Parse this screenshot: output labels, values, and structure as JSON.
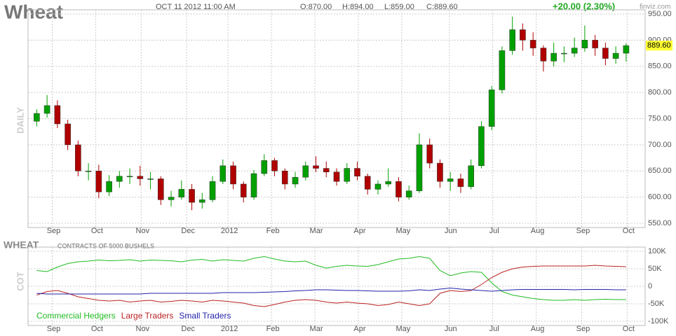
{
  "header": {
    "title": "Wheat",
    "datetime": "OCT 11 2012 11:00 AM",
    "open": "O:870.00",
    "high": "H:894.00",
    "low": "L:859.00",
    "close": "C:889.60",
    "change": "+20.00 (2.30%)",
    "brand": "finviz.com"
  },
  "chart_data": [
    {
      "type": "candlestick",
      "axis_label": "DAILY",
      "last_price": 889.6,
      "last_price_label": "889.60",
      "xlim": [
        0,
        295
      ],
      "xticks": [
        {
          "value": 10,
          "label": "Sep"
        },
        {
          "value": 31,
          "label": "Oct"
        },
        {
          "value": 53,
          "label": "Nov"
        },
        {
          "value": 75,
          "label": "Dec"
        },
        {
          "value": 95,
          "label": "2012"
        },
        {
          "value": 116,
          "label": "Feb"
        },
        {
          "value": 137,
          "label": "Mar"
        },
        {
          "value": 158,
          "label": "Apr"
        },
        {
          "value": 179,
          "label": "May"
        },
        {
          "value": 202,
          "label": "Jun"
        },
        {
          "value": 223,
          "label": "Jul"
        },
        {
          "value": 244,
          "label": "Aug"
        },
        {
          "value": 266,
          "label": "Sep"
        },
        {
          "value": 288,
          "label": "Oct"
        }
      ],
      "ylim": [
        550,
        950
      ],
      "yticks": [
        {
          "value": 550,
          "label": "550.00"
        },
        {
          "value": 600,
          "label": "600.00"
        },
        {
          "value": 650,
          "label": "650.00"
        },
        {
          "value": 700,
          "label": "700.00"
        },
        {
          "value": 750,
          "label": "750.00"
        },
        {
          "value": 800,
          "label": "800.00"
        },
        {
          "value": 850,
          "label": "850.00"
        },
        {
          "value": 900,
          "label": "900.00"
        },
        {
          "value": 950,
          "label": "950.00"
        }
      ],
      "up_color": "#00a000",
      "down_color": "#b00000",
      "grid": true,
      "x": [
        2.5,
        7.5,
        12.5,
        17.5,
        22.5,
        27.5,
        32.5,
        37.5,
        42.5,
        47.5,
        52.5,
        57.5,
        62.5,
        67.5,
        72.5,
        77.5,
        82.5,
        87.5,
        92.5,
        97.5,
        102.5,
        107.5,
        112.5,
        117.5,
        122.5,
        127.5,
        132.5,
        137.5,
        142.5,
        147.5,
        152.5,
        157.5,
        162.5,
        167.5,
        172.5,
        177.5,
        182.5,
        187.5,
        192.5,
        197.5,
        202.5,
        207.5,
        212.5,
        217.5,
        222.5,
        227.5,
        232.5,
        237.5,
        242.5,
        247.5,
        252.5,
        257.5,
        262.5,
        267.5,
        272.5,
        277.5,
        282.5,
        287.5
      ],
      "open": [
        745,
        760,
        775,
        740,
        700,
        650,
        650,
        610,
        630,
        640,
        640,
        635,
        635,
        595,
        600,
        615,
        590,
        595,
        630,
        660,
        625,
        600,
        645,
        670,
        650,
        625,
        638,
        660,
        655,
        648,
        630,
        655,
        640,
        615,
        625,
        630,
        600,
        612,
        700,
        665,
        630,
        635,
        620,
        660,
        735,
        805,
        880,
        920,
        900,
        885,
        860,
        875,
        875,
        885,
        900,
        885,
        865,
        875
      ],
      "high": [
        768,
        795,
        785,
        748,
        708,
        665,
        662,
        642,
        650,
        655,
        660,
        648,
        640,
        612,
        632,
        625,
        608,
        640,
        672,
        668,
        630,
        652,
        682,
        675,
        655,
        648,
        668,
        678,
        668,
        655,
        665,
        668,
        645,
        632,
        655,
        638,
        622,
        722,
        712,
        672,
        648,
        645,
        672,
        745,
        812,
        888,
        945,
        932,
        915,
        890,
        895,
        888,
        905,
        928,
        910,
        895,
        888,
        894
      ],
      "low": [
        735,
        752,
        732,
        690,
        640,
        632,
        598,
        602,
        618,
        625,
        622,
        615,
        585,
        582,
        595,
        575,
        578,
        590,
        625,
        615,
        590,
        595,
        640,
        640,
        615,
        618,
        632,
        648,
        638,
        622,
        625,
        632,
        605,
        605,
        620,
        592,
        595,
        608,
        655,
        618,
        612,
        608,
        615,
        655,
        728,
        798,
        872,
        880,
        870,
        840,
        850,
        858,
        868,
        878,
        870,
        852,
        855,
        859
      ],
      "close": [
        760,
        775,
        740,
        700,
        650,
        650,
        610,
        630,
        640,
        640,
        635,
        635,
        595,
        600,
        615,
        590,
        595,
        630,
        660,
        625,
        600,
        645,
        670,
        650,
        625,
        638,
        660,
        655,
        648,
        630,
        655,
        640,
        615,
        625,
        630,
        600,
        612,
        700,
        665,
        630,
        635,
        620,
        660,
        735,
        805,
        880,
        920,
        900,
        885,
        860,
        875,
        875,
        885,
        900,
        885,
        865,
        875,
        889.6
      ]
    },
    {
      "type": "line",
      "title": "WHEAT",
      "subtitle": "CONTRACTS OF 5000 BUSHELS",
      "axis_label": "COT",
      "xlim": [
        0,
        295
      ],
      "xticks": [
        {
          "value": 10,
          "label": "Sep"
        },
        {
          "value": 31,
          "label": "Oct"
        },
        {
          "value": 53,
          "label": "Nov"
        },
        {
          "value": 75,
          "label": "Dec"
        },
        {
          "value": 95,
          "label": "2012"
        },
        {
          "value": 116,
          "label": "Feb"
        },
        {
          "value": 137,
          "label": "Mar"
        },
        {
          "value": 158,
          "label": "Apr"
        },
        {
          "value": 179,
          "label": "May"
        },
        {
          "value": 202,
          "label": "Jun"
        },
        {
          "value": 223,
          "label": "Jul"
        },
        {
          "value": 244,
          "label": "Aug"
        },
        {
          "value": 266,
          "label": "Sep"
        },
        {
          "value": 288,
          "label": "Oct"
        }
      ],
      "ylim": [
        -100000,
        100000
      ],
      "yticks": [
        {
          "value": -100000,
          "label": "-100K"
        },
        {
          "value": -50000,
          "label": "-50K"
        },
        0,
        {
          "value": 50000,
          "label": "50K"
        },
        {
          "value": 100000,
          "label": "100K"
        }
      ],
      "grid": true,
      "x": [
        2.5,
        7.5,
        12.5,
        17.5,
        22.5,
        27.5,
        32.5,
        37.5,
        42.5,
        47.5,
        52.5,
        57.5,
        62.5,
        67.5,
        72.5,
        77.5,
        82.5,
        87.5,
        92.5,
        97.5,
        102.5,
        107.5,
        112.5,
        117.5,
        122.5,
        127.5,
        132.5,
        137.5,
        142.5,
        147.5,
        152.5,
        157.5,
        162.5,
        167.5,
        172.5,
        177.5,
        182.5,
        187.5,
        192.5,
        197.5,
        202.5,
        207.5,
        212.5,
        217.5,
        222.5,
        227.5,
        232.5,
        237.5,
        242.5,
        247.5,
        252.5,
        257.5,
        262.5,
        267.5,
        272.5,
        277.5,
        282.5,
        287.5
      ],
      "series": [
        {
          "name": "Commercial Hedgers",
          "color": "#22bb22",
          "values": [
            45000,
            42000,
            55000,
            65000,
            70000,
            72000,
            75000,
            73000,
            74000,
            76000,
            72000,
            75000,
            74000,
            73000,
            70000,
            75000,
            77000,
            72000,
            76000,
            74000,
            72000,
            80000,
            85000,
            78000,
            72000,
            70000,
            72000,
            60000,
            52000,
            57000,
            60000,
            58000,
            57000,
            62000,
            70000,
            78000,
            80000,
            85000,
            80000,
            45000,
            30000,
            38000,
            42000,
            40000,
            10000,
            -15000,
            -25000,
            -30000,
            -35000,
            -38000,
            -40000,
            -40000,
            -38000,
            -40000,
            -38000,
            -37000,
            -38000,
            -38000
          ]
        },
        {
          "name": "Large Traders",
          "color": "#bb2222",
          "values": [
            -25000,
            -15000,
            -12000,
            -20000,
            -30000,
            -35000,
            -40000,
            -42000,
            -40000,
            -45000,
            -42000,
            -40000,
            -45000,
            -43000,
            -40000,
            -42000,
            -45000,
            -40000,
            -42000,
            -45000,
            -48000,
            -55000,
            -58000,
            -52000,
            -45000,
            -40000,
            -38000,
            -40000,
            -45000,
            -48000,
            -45000,
            -48000,
            -50000,
            -55000,
            -52000,
            -45000,
            -50000,
            -55000,
            -50000,
            -20000,
            -12000,
            -15000,
            -12000,
            5000,
            25000,
            40000,
            50000,
            55000,
            57000,
            58000,
            58000,
            58000,
            58000,
            58000,
            60000,
            58000,
            57000,
            56000
          ]
        },
        {
          "name": "Small Traders",
          "color": "#2222aa",
          "values": [
            -20000,
            -22000,
            -22000,
            -22000,
            -22000,
            -22000,
            -22000,
            -22000,
            -22000,
            -22000,
            -22000,
            -20000,
            -20000,
            -20000,
            -20000,
            -20000,
            -20000,
            -20000,
            -18000,
            -18000,
            -18000,
            -18000,
            -17000,
            -16000,
            -15000,
            -13000,
            -12000,
            -10000,
            -10000,
            -11000,
            -12000,
            -12000,
            -13000,
            -14000,
            -14000,
            -14000,
            -13000,
            -10000,
            -12000,
            -8000,
            -5000,
            -8000,
            -10000,
            -12000,
            -14000,
            -12000,
            -10000,
            -9000,
            -9000,
            -9000,
            -9000,
            -9000,
            -10000,
            -9000,
            -9000,
            -9000,
            -10000,
            -10000
          ]
        }
      ]
    }
  ]
}
